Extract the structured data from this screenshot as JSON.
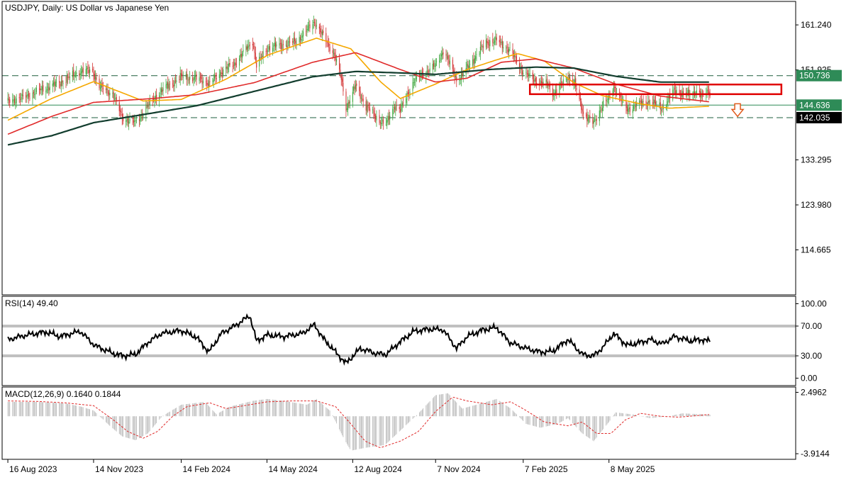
{
  "main_title": "USDJPY, Daily:  US Dollar vs Japanese Yen",
  "rsi_title": "RSI(14) 49.40",
  "macd_title": "MACD(12,26,9) 0.1640 0.1844",
  "colors": {
    "bull_candle": "#3fa73f",
    "bear_candle": "#d23030",
    "ma_fast": "#f5a800",
    "ma_mid": "#e02a2a",
    "ma_slow": "#123d2e",
    "level_line": "#2e8b57",
    "label_green": "#2e8b57",
    "label_black": "#000000",
    "box": "#e00000",
    "arrow": "#e05a1a",
    "rsi_line": "#000000",
    "rsi_band": "#c0c0c0",
    "macd_hist": "#b5b5b5",
    "macd_signal": "#e02a2a"
  },
  "chart_data": [
    {
      "type": "candlestick",
      "pane": "price",
      "title": "USDJPY, Daily:  US Dollar vs Japanese Yen",
      "ylim": [
        105.35,
        166.1
      ],
      "y_ticks": [
        "161.240",
        "151.925",
        "133.295",
        "123.980",
        "114.665"
      ],
      "x_ticks": [
        "16 Aug 2023",
        "14 Nov 2023",
        "14 Feb 2024",
        "14 May 2024",
        "12 Aug 2024",
        "7 Nov 2024",
        "7 Feb 2025",
        "8 May 2025"
      ],
      "x_range": [
        "2023-08-10",
        "2025-11-20"
      ],
      "horizontal_levels": [
        {
          "value": 150.736,
          "label": "150.736",
          "style": "dashed",
          "label_style": "green"
        },
        {
          "value": 144.636,
          "label": "144.636",
          "style": "solid",
          "label_style": "green"
        },
        {
          "value": 142.035,
          "label": "142.035",
          "style": "dashed",
          "label_style": "black"
        }
      ],
      "price_path": [
        [
          "2023-08-16",
          145.4
        ],
        [
          "2023-09-01",
          146.2
        ],
        [
          "2023-09-20",
          147.8
        ],
        [
          "2023-10-10",
          149.3
        ],
        [
          "2023-10-31",
          151.6
        ],
        [
          "2023-11-13",
          151.8
        ],
        [
          "2023-11-20",
          148.4
        ],
        [
          "2023-12-04",
          147.0
        ],
        [
          "2023-12-14",
          142.0
        ],
        [
          "2023-12-28",
          141.0
        ],
        [
          "2024-01-10",
          144.5
        ],
        [
          "2024-01-25",
          147.8
        ],
        [
          "2024-02-14",
          150.5
        ],
        [
          "2024-03-05",
          150.0
        ],
        [
          "2024-03-15",
          149.0
        ],
        [
          "2024-03-27",
          151.6
        ],
        [
          "2024-04-10",
          153.2
        ],
        [
          "2024-04-29",
          158.0
        ],
        [
          "2024-05-03",
          152.8
        ],
        [
          "2024-05-14",
          156.4
        ],
        [
          "2024-05-31",
          157.2
        ],
        [
          "2024-06-14",
          157.8
        ],
        [
          "2024-06-28",
          160.9
        ],
        [
          "2024-07-03",
          161.9
        ],
        [
          "2024-07-11",
          159.2
        ],
        [
          "2024-07-24",
          155.0
        ],
        [
          "2024-07-31",
          150.0
        ],
        [
          "2024-08-05",
          144.0
        ],
        [
          "2024-08-15",
          148.6
        ],
        [
          "2024-08-26",
          144.4
        ],
        [
          "2024-09-06",
          142.0
        ],
        [
          "2024-09-16",
          140.6
        ],
        [
          "2024-09-25",
          144.7
        ],
        [
          "2024-10-01",
          143.6
        ],
        [
          "2024-10-15",
          149.6
        ],
        [
          "2024-10-31",
          152.0
        ],
        [
          "2024-11-07",
          152.8
        ],
        [
          "2024-11-15",
          156.0
        ],
        [
          "2024-11-29",
          150.0
        ],
        [
          "2024-12-04",
          150.6
        ],
        [
          "2024-12-18",
          154.5
        ],
        [
          "2024-12-30",
          157.6
        ],
        [
          "2025-01-10",
          158.0
        ],
        [
          "2025-01-24",
          156.0
        ],
        [
          "2025-02-07",
          151.4
        ],
        [
          "2025-02-20",
          149.7
        ],
        [
          "2025-03-05",
          148.8
        ],
        [
          "2025-03-11",
          147.0
        ],
        [
          "2025-03-26",
          150.6
        ],
        [
          "2025-04-02",
          149.0
        ],
        [
          "2025-04-11",
          143.0
        ],
        [
          "2025-04-22",
          140.8
        ],
        [
          "2025-05-02",
          145.0
        ],
        [
          "2025-05-08",
          145.8
        ],
        [
          "2025-05-13",
          148.5
        ],
        [
          "2025-05-27",
          143.6
        ],
        [
          "2025-06-06",
          144.8
        ],
        [
          "2025-06-20",
          145.4
        ],
        [
          "2025-07-03",
          144.0
        ],
        [
          "2025-07-16",
          147.8
        ],
        [
          "2025-07-24",
          147.0
        ],
        [
          "2025-08-01",
          146.7
        ],
        [
          "2025-08-08",
          147.7
        ],
        [
          "2025-08-14",
          146.2
        ],
        [
          "2025-08-19",
          147.6
        ],
        [
          "2025-08-22",
          147.3
        ]
      ],
      "moving_averages": [
        {
          "role": "ma_fast",
          "points": [
            [
              "2023-08-16",
              141.5
            ],
            [
              "2023-10-01",
              146.0
            ],
            [
              "2023-11-14",
              149.5
            ],
            [
              "2024-01-05",
              145.5
            ],
            [
              "2024-02-14",
              145.8
            ],
            [
              "2024-04-01",
              150.0
            ],
            [
              "2024-05-15",
              155.0
            ],
            [
              "2024-07-05",
              158.5
            ],
            [
              "2024-08-10",
              156.3
            ],
            [
              "2024-09-10",
              149.5
            ],
            [
              "2024-10-01",
              146.0
            ],
            [
              "2024-11-07",
              149.0
            ],
            [
              "2024-12-10",
              152.0
            ],
            [
              "2025-01-10",
              154.0
            ],
            [
              "2025-02-01",
              155.3
            ],
            [
              "2025-03-01",
              153.8
            ],
            [
              "2025-04-01",
              149.3
            ],
            [
              "2025-05-01",
              146.6
            ],
            [
              "2025-06-10",
              144.9
            ],
            [
              "2025-07-10",
              144.0
            ],
            [
              "2025-08-22",
              144.4
            ]
          ]
        },
        {
          "role": "ma_mid",
          "points": [
            [
              "2023-08-16",
              138.6
            ],
            [
              "2023-10-01",
              142.3
            ],
            [
              "2023-11-14",
              145.2
            ],
            [
              "2024-01-15",
              146.0
            ],
            [
              "2024-03-01",
              146.8
            ],
            [
              "2024-05-01",
              149.3
            ],
            [
              "2024-07-01",
              153.5
            ],
            [
              "2024-08-15",
              155.5
            ],
            [
              "2024-10-01",
              152.0
            ],
            [
              "2024-11-07",
              149.4
            ],
            [
              "2024-12-10",
              150.2
            ],
            [
              "2025-01-15",
              153.5
            ],
            [
              "2025-02-20",
              154.2
            ],
            [
              "2025-04-01",
              152.3
            ],
            [
              "2025-05-15",
              149.0
            ],
            [
              "2025-07-01",
              146.5
            ],
            [
              "2025-08-22",
              145.3
            ]
          ]
        },
        {
          "role": "ma_slow",
          "points": [
            [
              "2023-08-16",
              136.4
            ],
            [
              "2023-10-01",
              138.3
            ],
            [
              "2023-11-14",
              141.0
            ],
            [
              "2024-01-15",
              143.0
            ],
            [
              "2024-03-01",
              144.5
            ],
            [
              "2024-05-01",
              147.5
            ],
            [
              "2024-07-01",
              150.5
            ],
            [
              "2024-08-15",
              151.6
            ],
            [
              "2024-10-01",
              151.3
            ],
            [
              "2024-11-07",
              151.0
            ],
            [
              "2025-01-01",
              152.0
            ],
            [
              "2025-02-20",
              152.5
            ],
            [
              "2025-04-01",
              152.3
            ],
            [
              "2025-05-15",
              150.6
            ],
            [
              "2025-07-01",
              149.4
            ],
            [
              "2025-08-22",
              149.4
            ]
          ]
        }
      ],
      "annotations": [
        {
          "type": "rectangle",
          "x_from": "2025-02-14",
          "x_to": "2025-11-05",
          "y_from": 146.9,
          "y_to": 148.9
        },
        {
          "type": "down-arrow",
          "x": "2025-09-20",
          "y": 143.6
        }
      ]
    },
    {
      "type": "line",
      "pane": "rsi",
      "title": "RSI(14) 49.40",
      "ylim": [
        -10,
        110
      ],
      "y_ticks": [
        "100.00",
        "70.00",
        "30.00",
        "0.00"
      ],
      "bands": [
        70,
        30
      ],
      "points": [
        [
          "2023-08-16",
          52
        ],
        [
          "2023-09-05",
          58
        ],
        [
          "2023-09-25",
          62
        ],
        [
          "2023-10-10",
          56
        ],
        [
          "2023-10-31",
          63
        ],
        [
          "2023-11-15",
          44
        ],
        [
          "2023-12-05",
          33
        ],
        [
          "2023-12-15",
          30
        ],
        [
          "2023-12-28",
          32
        ],
        [
          "2024-01-10",
          48
        ],
        [
          "2024-01-24",
          60
        ],
        [
          "2024-02-14",
          64
        ],
        [
          "2024-03-01",
          55
        ],
        [
          "2024-03-14",
          35
        ],
        [
          "2024-03-27",
          60
        ],
        [
          "2024-04-10",
          70
        ],
        [
          "2024-04-26",
          84
        ],
        [
          "2024-05-03",
          50
        ],
        [
          "2024-05-14",
          58
        ],
        [
          "2024-06-01",
          56
        ],
        [
          "2024-06-20",
          60
        ],
        [
          "2024-07-03",
          72
        ],
        [
          "2024-07-11",
          55
        ],
        [
          "2024-07-25",
          35
        ],
        [
          "2024-08-05",
          20
        ],
        [
          "2024-08-20",
          40
        ],
        [
          "2024-09-06",
          33
        ],
        [
          "2024-09-16",
          32
        ],
        [
          "2024-09-30",
          48
        ],
        [
          "2024-10-15",
          63
        ],
        [
          "2024-11-01",
          66
        ],
        [
          "2024-11-15",
          65
        ],
        [
          "2024-11-29",
          40
        ],
        [
          "2024-12-10",
          56
        ],
        [
          "2024-12-27",
          65
        ],
        [
          "2025-01-10",
          68
        ],
        [
          "2025-01-24",
          48
        ],
        [
          "2025-02-10",
          40
        ],
        [
          "2025-02-25",
          35
        ],
        [
          "2025-03-10",
          36
        ],
        [
          "2025-03-26",
          52
        ],
        [
          "2025-04-10",
          32
        ],
        [
          "2025-04-22",
          30
        ],
        [
          "2025-05-02",
          42
        ],
        [
          "2025-05-13",
          60
        ],
        [
          "2025-05-27",
          44
        ],
        [
          "2025-06-10",
          48
        ],
        [
          "2025-06-20",
          52
        ],
        [
          "2025-07-03",
          46
        ],
        [
          "2025-07-16",
          56
        ],
        [
          "2025-08-01",
          50
        ],
        [
          "2025-08-14",
          52
        ],
        [
          "2025-08-22",
          49.4
        ]
      ]
    },
    {
      "type": "histogram+line",
      "pane": "macd",
      "title": "MACD(12,26,9) 0.1640 0.1844",
      "ylim": [
        -4.5,
        3.05
      ],
      "y_ticks": [
        "2.4962",
        "-3.9144"
      ],
      "main_points": [
        [
          "2023-08-16",
          1.5
        ],
        [
          "2023-09-15",
          1.5
        ],
        [
          "2023-10-15",
          1.35
        ],
        [
          "2023-11-01",
          1.0
        ],
        [
          "2023-11-14",
          0.6
        ],
        [
          "2023-12-01",
          -1.0
        ],
        [
          "2023-12-14",
          -2.1
        ],
        [
          "2023-12-28",
          -2.5
        ],
        [
          "2024-01-10",
          -1.8
        ],
        [
          "2024-01-25",
          0.0
        ],
        [
          "2024-02-14",
          1.2
        ],
        [
          "2024-03-10",
          1.5
        ],
        [
          "2024-03-22",
          0.2
        ],
        [
          "2024-04-05",
          1.0
        ],
        [
          "2024-04-29",
          1.6
        ],
        [
          "2024-05-14",
          1.8
        ],
        [
          "2024-06-01",
          1.6
        ],
        [
          "2024-06-25",
          1.2
        ],
        [
          "2024-07-05",
          1.8
        ],
        [
          "2024-07-20",
          0.5
        ],
        [
          "2024-08-01",
          -2.0
        ],
        [
          "2024-08-10",
          -3.6
        ],
        [
          "2024-08-25",
          -3.3
        ],
        [
          "2024-09-15",
          -3.0
        ],
        [
          "2024-10-01",
          -1.5
        ],
        [
          "2024-10-20",
          0.3
        ],
        [
          "2024-11-07",
          2.2
        ],
        [
          "2024-11-20",
          2.4
        ],
        [
          "2024-12-05",
          0.8
        ],
        [
          "2024-12-20",
          1.2
        ],
        [
          "2025-01-10",
          1.8
        ],
        [
          "2025-01-25",
          0.8
        ],
        [
          "2025-02-10",
          -0.8
        ],
        [
          "2025-02-25",
          -1.2
        ],
        [
          "2025-03-15",
          -0.8
        ],
        [
          "2025-03-26",
          -0.2
        ],
        [
          "2025-04-10",
          -1.8
        ],
        [
          "2025-04-22",
          -2.6
        ],
        [
          "2025-05-08",
          -0.6
        ],
        [
          "2025-05-15",
          0.4
        ],
        [
          "2025-06-01",
          0.2
        ],
        [
          "2025-06-20",
          -0.2
        ],
        [
          "2025-07-10",
          0.0
        ],
        [
          "2025-07-24",
          0.3
        ],
        [
          "2025-08-22",
          0.164
        ]
      ],
      "signal_points": [
        [
          "2023-08-16",
          1.6
        ],
        [
          "2023-09-15",
          1.55
        ],
        [
          "2023-10-15",
          1.4
        ],
        [
          "2023-11-14",
          1.1
        ],
        [
          "2023-12-05",
          -0.4
        ],
        [
          "2023-12-20",
          -1.6
        ],
        [
          "2024-01-05",
          -2.3
        ],
        [
          "2024-01-20",
          -1.6
        ],
        [
          "2024-02-05",
          0.0
        ],
        [
          "2024-02-20",
          1.0
        ],
        [
          "2024-03-15",
          1.4
        ],
        [
          "2024-04-01",
          0.8
        ],
        [
          "2024-04-20",
          1.1
        ],
        [
          "2024-05-14",
          1.5
        ],
        [
          "2024-06-10",
          1.6
        ],
        [
          "2024-07-05",
          1.6
        ],
        [
          "2024-07-25",
          1.0
        ],
        [
          "2024-08-10",
          -0.8
        ],
        [
          "2024-08-25",
          -2.6
        ],
        [
          "2024-09-10",
          -3.3
        ],
        [
          "2024-10-01",
          -2.6
        ],
        [
          "2024-10-20",
          -1.6
        ],
        [
          "2024-11-07",
          0.5
        ],
        [
          "2024-11-25",
          2.0
        ],
        [
          "2024-12-10",
          1.6
        ],
        [
          "2025-01-05",
          1.2
        ],
        [
          "2025-01-25",
          1.5
        ],
        [
          "2025-02-10",
          0.6
        ],
        [
          "2025-03-01",
          -0.6
        ],
        [
          "2025-03-26",
          -1.0
        ],
        [
          "2025-04-10",
          -0.6
        ],
        [
          "2025-04-25",
          -1.8
        ],
        [
          "2025-05-10",
          -1.8
        ],
        [
          "2025-05-25",
          -0.4
        ],
        [
          "2025-06-10",
          0.3
        ],
        [
          "2025-07-01",
          0.0
        ],
        [
          "2025-07-20",
          -0.1
        ],
        [
          "2025-08-22",
          0.1844
        ]
      ]
    }
  ]
}
